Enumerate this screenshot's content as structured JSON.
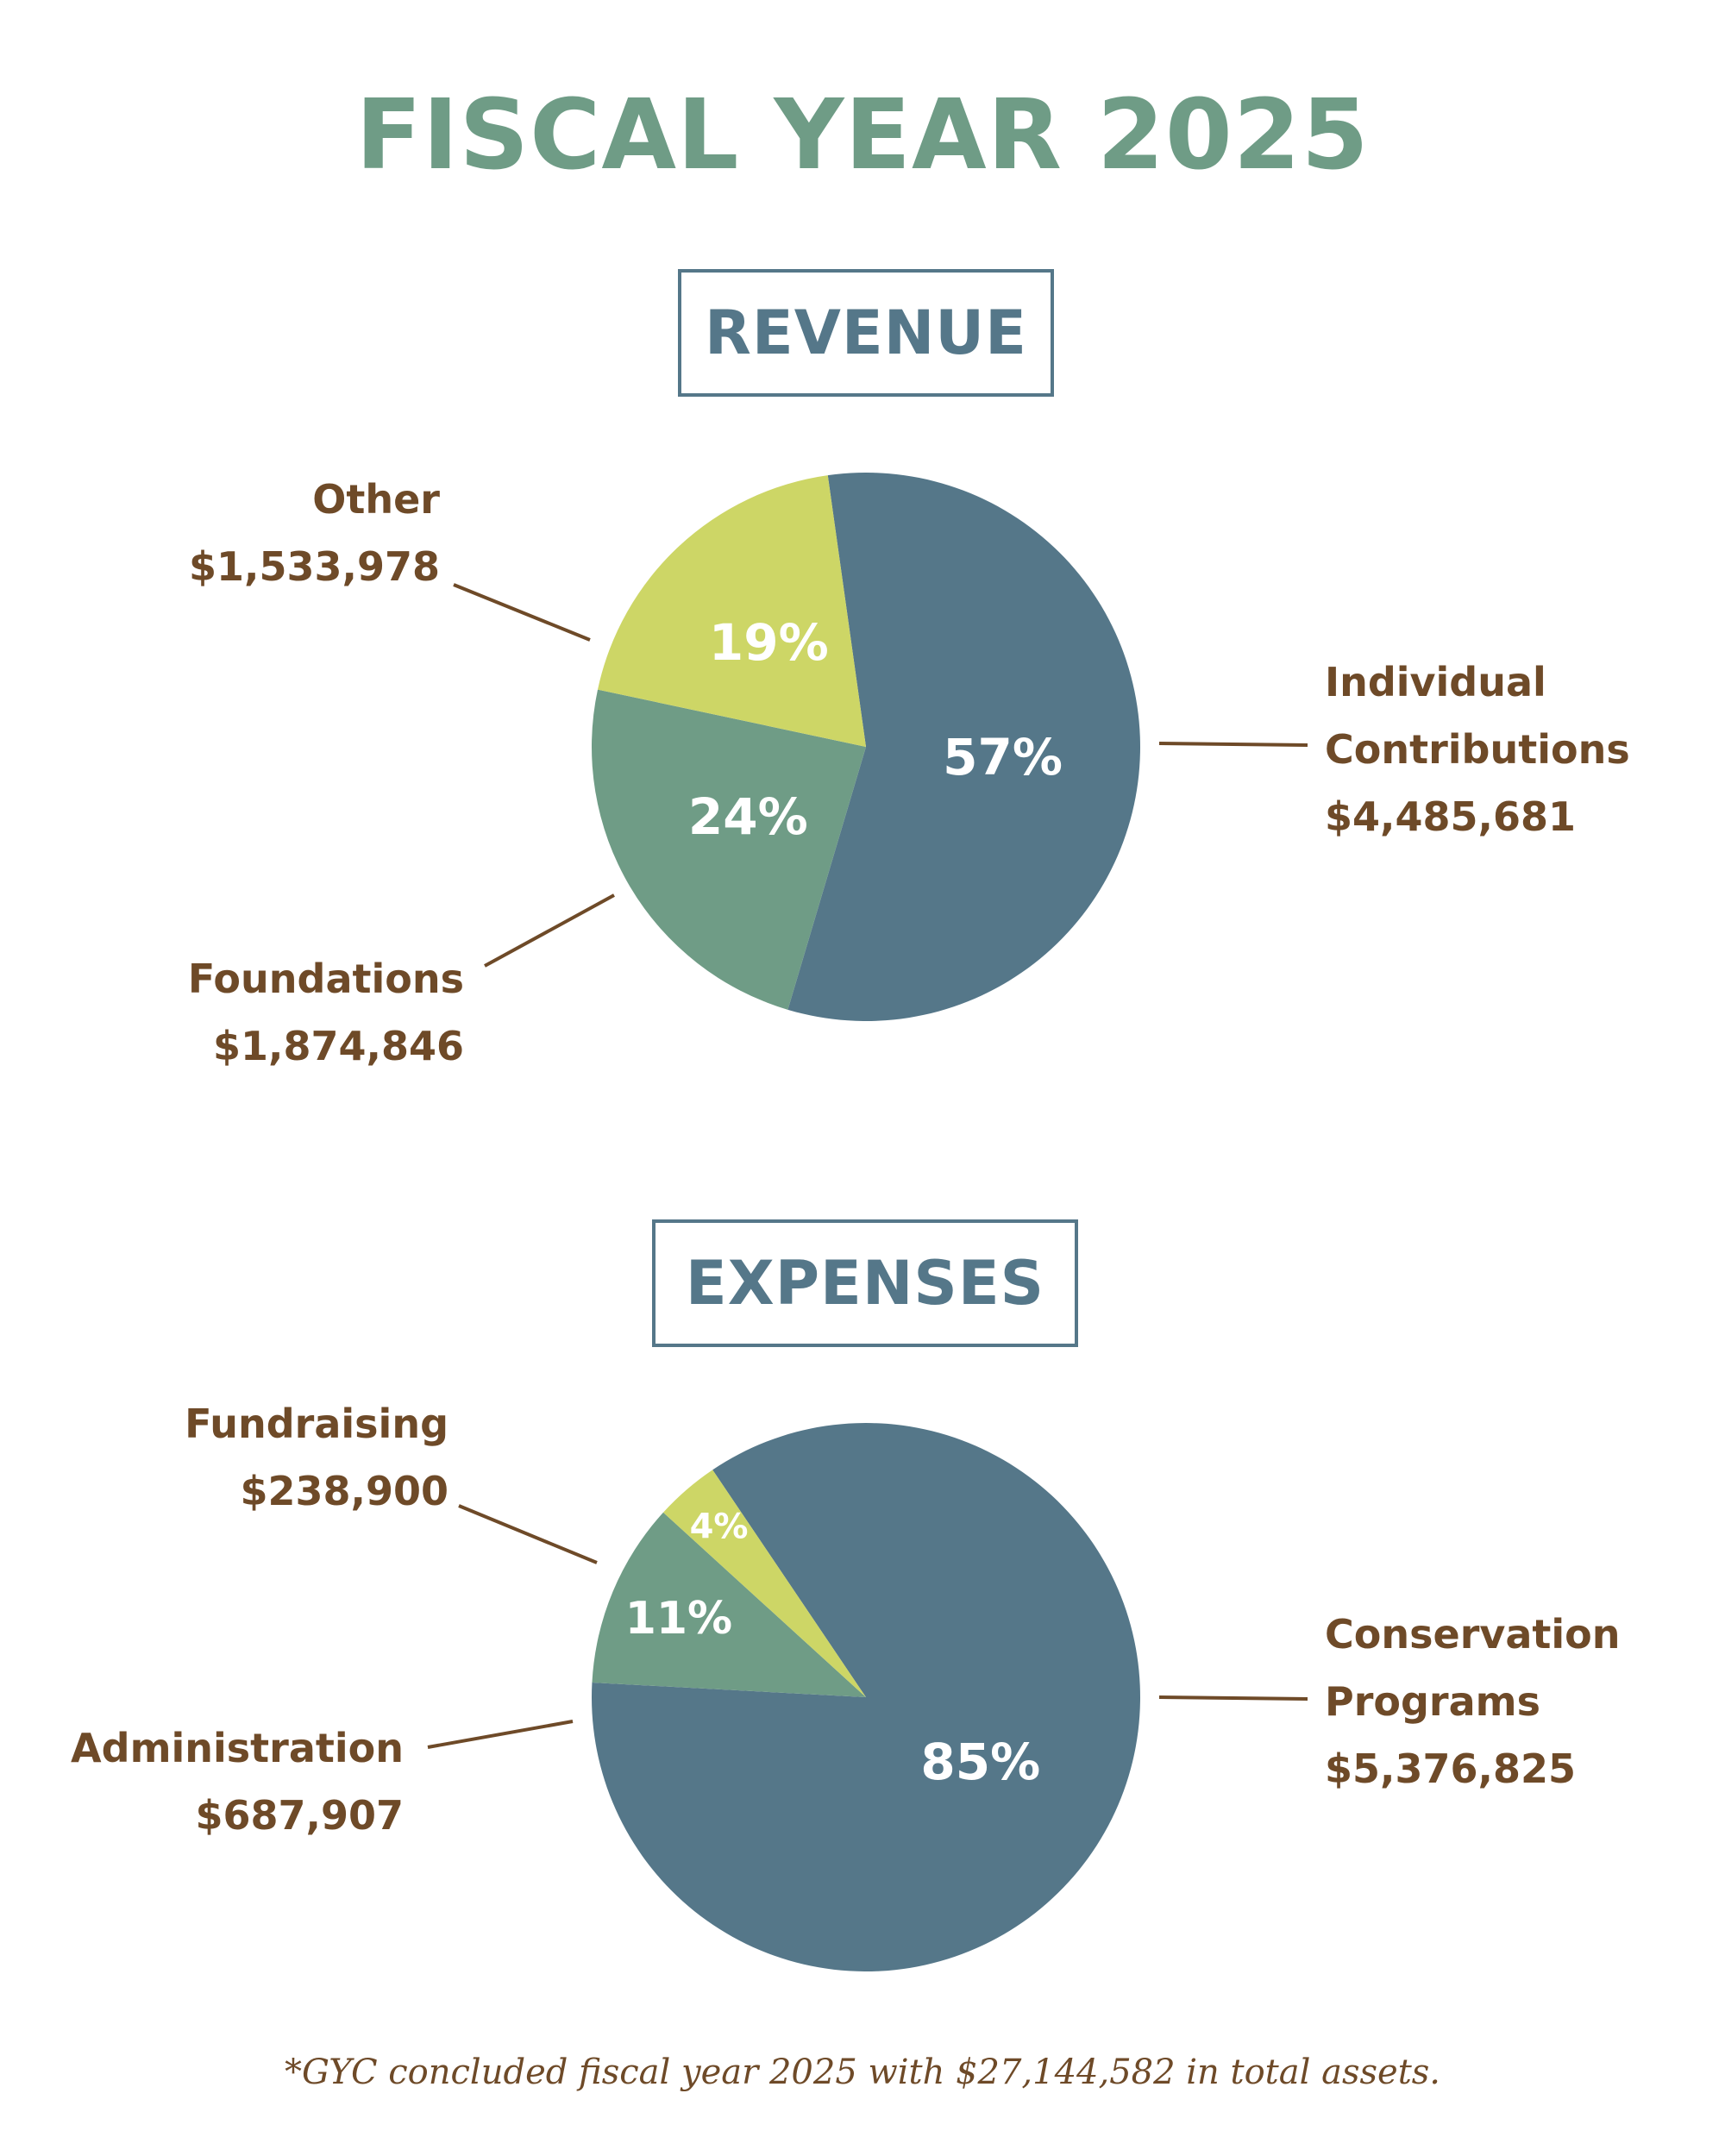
{
  "title": "FISCAL YEAR 2025",
  "footnote": "*GYC concluded fiscal year 2025 with $27,144,582 in total assets.",
  "colors": {
    "title": "#6f9c86",
    "heading": "#557789",
    "label": "#6e4a28",
    "slate_blue": "#557789",
    "sage_green": "#6f9c86",
    "lime_yellow": "#cdd666"
  },
  "chart_data": [
    {
      "type": "pie",
      "title": "REVENUE",
      "slices": [
        {
          "name_lines": [
            "Individual",
            "Contributions"
          ],
          "amount": "$4,485,681",
          "value": 4485681,
          "percent_label": "57%",
          "color": "#557789"
        },
        {
          "name_lines": [
            "Foundations"
          ],
          "amount": "$1,874,846",
          "value": 1874846,
          "percent_label": "24%",
          "color": "#6f9c86"
        },
        {
          "name_lines": [
            "Other"
          ],
          "amount": "$1,533,978",
          "value": 1533978,
          "percent_label": "19%",
          "color": "#cdd666"
        }
      ]
    },
    {
      "type": "pie",
      "title": "EXPENSES",
      "slices": [
        {
          "name_lines": [
            "Conservation",
            "Programs"
          ],
          "amount": "$5,376,825",
          "value": 5376825,
          "percent_label": "85%",
          "color": "#557789"
        },
        {
          "name_lines": [
            "Administration"
          ],
          "amount": "$687,907",
          "value": 687907,
          "percent_label": "11%",
          "color": "#6f9c86"
        },
        {
          "name_lines": [
            "Fundraising"
          ],
          "amount": "$238,900",
          "value": 238900,
          "percent_label": "4%",
          "color": "#cdd666"
        }
      ]
    }
  ]
}
